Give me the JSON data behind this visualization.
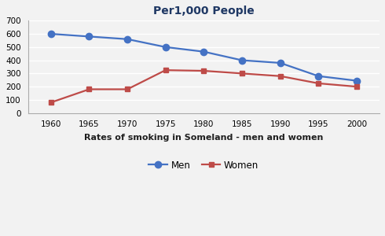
{
  "title": "Per1,000 People",
  "xlabel": "Rates of smoking in Someland - men and women",
  "years": [
    1960,
    1965,
    1970,
    1975,
    1980,
    1985,
    1990,
    1995,
    2000
  ],
  "men": [
    600,
    580,
    560,
    500,
    465,
    400,
    380,
    280,
    245
  ],
  "women": [
    80,
    180,
    180,
    325,
    320,
    300,
    280,
    225,
    200
  ],
  "men_color": "#4472C4",
  "women_color": "#BE4B48",
  "ylim": [
    0,
    700
  ],
  "yticks": [
    0,
    100,
    200,
    300,
    400,
    500,
    600,
    700
  ],
  "legend_men": "Men",
  "legend_women": "Women",
  "background_color": "#f2f2f2",
  "plot_bg_color": "#f2f2f2",
  "grid_color": "#ffffff"
}
